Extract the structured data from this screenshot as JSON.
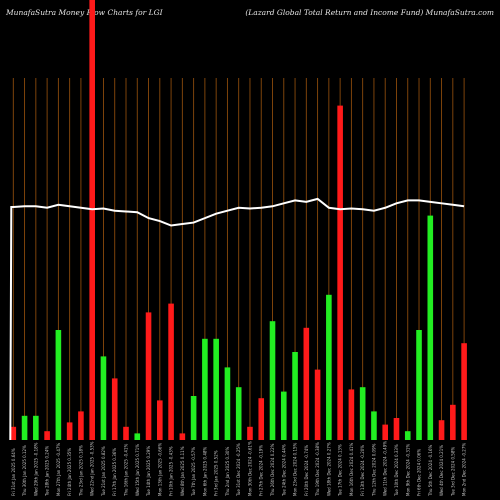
{
  "header": {
    "left": "MunafaSutra  Money Flow  Charts for LGI",
    "right": "(Lazard Global Total Return  and Income   Fund) MunafaSutra.com"
  },
  "colors": {
    "background": "#000000",
    "up": "#22ee22",
    "down": "#ff1a1a",
    "price_line": "#ffffff",
    "gridline": "#8a4a0c"
  },
  "chart_data": {
    "type": "bar",
    "title": "MunafaSutra  Money Flow  Charts for LGI",
    "subtitle": "(Lazard Global Total Return  and Income   Fund) MunafaSutra.com",
    "categories": [
      "Fri 31st Jan 2025",
      "Thu 30th Jan 2025",
      "Wed 29th Jan 2025",
      "Tue 28th Jan 2025",
      "Mon 27th Jan 2025",
      "Fri 24th Jan 2025",
      "Thu 23rd Jan 2025",
      "Wed 22nd Jan 2025",
      "Tue 21st Jan 2025",
      "Fri 17th Jan 2025",
      "Thu 16th Jan 2025",
      "Wed 15th Jan 2025",
      "Tue 14th Jan 2025",
      "Mon 13th Jan 2025",
      "Fri 10th Jan 2025",
      "Wed 8th Jan 2025",
      "Tue 7th Jan 2025",
      "Mon 6th Jan 2025",
      "Fri 3rd Jan 2025",
      "Thu 2nd Jan 2025",
      "Tue 31st Dec 2024",
      "Mon 30th Dec 2024",
      "Fri 27th Dec 2024",
      "Thu 26th Dec 2024",
      "Tue 24th Dec 2024",
      "Mon 23rd Dec 2024",
      "Fri 20th Dec 2024",
      "Thu 19th Dec 2024",
      "Wed 18th Dec 2024",
      "Tue 17th Dec 2024",
      "Mon 16th Dec 2024",
      "Fri 13th Dec 2024",
      "Thu 12th Dec 2024",
      "Wed 11th Dec 2024",
      "Tue 10th Dec 2024",
      "Mon 9th Dec 2024",
      "Fri 6th Dec 2024",
      "Thu 5th Dec 2024",
      "Wed 4th Dec 2024",
      "Tue 3rd Dec 2024",
      "Mon 2nd Dec 2024"
    ],
    "tick_labels": [
      "Fri 31st Jan 2025 0.64%",
      "Thu 30th Jan 2025 0.12%",
      "Wed 29th Jan 2025 -0.18%",
      "Tue 28th Jan 2025 0.24%",
      "Mon 27th Jan 2025 -0.47%",
      "Fri 24th Jan 2025 0.35%",
      "Thu 23rd Jan 2025 0.18%",
      "Wed 22nd Jan 2025 -0.53%",
      "Tue 21st Jan 2025 0.82%",
      "Fri 17th Jan 2025 0.36%",
      "Thu 16th Jan 2025 -0.41%",
      "Wed 15th Jan 2025 0.71%",
      "Tue 14th Jan 2025 0.29%",
      "Mon 13th Jan 2025 -0.66%",
      "Fri 10th Jan 2025 -0.43%",
      "Wed 8th Jan 2025 0.11%",
      "Tue 7th Jan 2025 -0.57%",
      "Mon 6th Jan 2025 0.48%",
      "Fri 3rd Jan 2025 0.52%",
      "Thu 2nd Jan 2025 0.30%",
      "Tue 31st Dec 2024 -0.25%",
      "Mon 30th Dec 2024 -0.61%",
      "Fri 27th Dec 2024 -0.19%",
      "Thu 26th Dec 2024 0.22%",
      "Tue 24th Dec 2024 0.44%",
      "Mon 23rd Dec 2024 0.15%",
      "Fri 20th Dec 2024 -0.74%",
      "Thu 19th Dec 2024 -0.38%",
      "Wed 18th Dec 2024 0.27%",
      "Tue 17th Dec 2024 0.13%",
      "Mon 16th Dec 2024 0.41%",
      "Fri 13th Dec 2024 -0.20%",
      "Thu 12th Dec 2024 0.09%",
      "Wed 11th Dec 2024 -0.49%",
      "Tue 10th Dec 2024 0.33%",
      "Mon 9th Dec 2024 -0.31%",
      "Fri 6th Dec 2024 0.06%",
      "Thu 5th Dec 2024 -0.16%",
      "Wed 4th Dec 2024 0.21%",
      "Tue 3rd Dec 2024 0.58%",
      "Mon 2nd Dec 2024 -0.27%"
    ],
    "series": [
      {
        "values": [
          3,
          5.5,
          5.5,
          2,
          25,
          4,
          6.5,
          100,
          19,
          14,
          3,
          1.5,
          29,
          9,
          31,
          1.5,
          10,
          23,
          23,
          16.5,
          12,
          3,
          9.5,
          27,
          11,
          20,
          25.5,
          16,
          33,
          76,
          11.5,
          12,
          6.5,
          3.5,
          5,
          2,
          25,
          51,
          4.5,
          8,
          22
        ]
      }
    ],
    "bar_colors": [
      "red",
      "green",
      "green",
      "red",
      "green",
      "red",
      "red",
      "red",
      "green",
      "red",
      "red",
      "green",
      "red",
      "red",
      "red",
      "red",
      "green",
      "green",
      "green",
      "green",
      "green",
      "red",
      "red",
      "green",
      "green",
      "green",
      "red",
      "red",
      "green",
      "red",
      "red",
      "green",
      "green",
      "red",
      "red",
      "green",
      "green",
      "green",
      "red",
      "red",
      "red"
    ],
    "price_line": [
      88.5,
      89,
      89,
      88,
      90,
      89,
      88,
      87,
      87.5,
      86,
      85.5,
      85,
      81,
      79,
      76,
      77,
      78,
      81,
      84,
      86,
      88,
      87.5,
      88,
      89,
      91,
      93,
      92,
      94,
      88,
      87,
      87.5,
      87,
      86,
      88,
      91,
      93,
      93,
      92,
      91,
      90,
      89
    ],
    "ylim": [
      0,
      100
    ],
    "grid": true
  }
}
